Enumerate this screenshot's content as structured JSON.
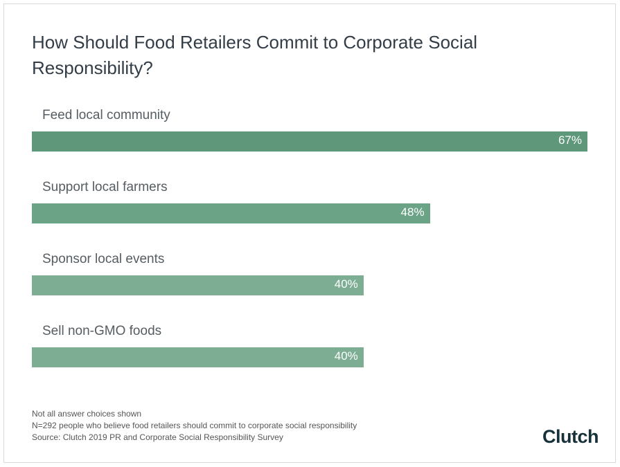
{
  "chart_data": {
    "type": "bar",
    "orientation": "horizontal",
    "title": "How Should Food Retailers Commit to Corporate Social Responsibility?",
    "categories": [
      "Feed local community",
      "Support local farmers",
      "Sponsor local events",
      "Sell non-GMO foods"
    ],
    "values": [
      67,
      48,
      40,
      40
    ],
    "data_labels": [
      "67%",
      "48%",
      "40%",
      "40%"
    ],
    "unit": "%",
    "colors": [
      "#5e977a",
      "#6ba386",
      "#7dae93",
      "#7dae93"
    ],
    "xlim": [
      0,
      67
    ],
    "grid": false
  },
  "footer": {
    "notes": [
      "Not all answer choices shown",
      "N=292 people who believe food retailers should commit to corporate social responsibility",
      "Source: Clutch 2019 PR and Corporate Social Responsibility Survey"
    ],
    "logo": "Clutch"
  }
}
